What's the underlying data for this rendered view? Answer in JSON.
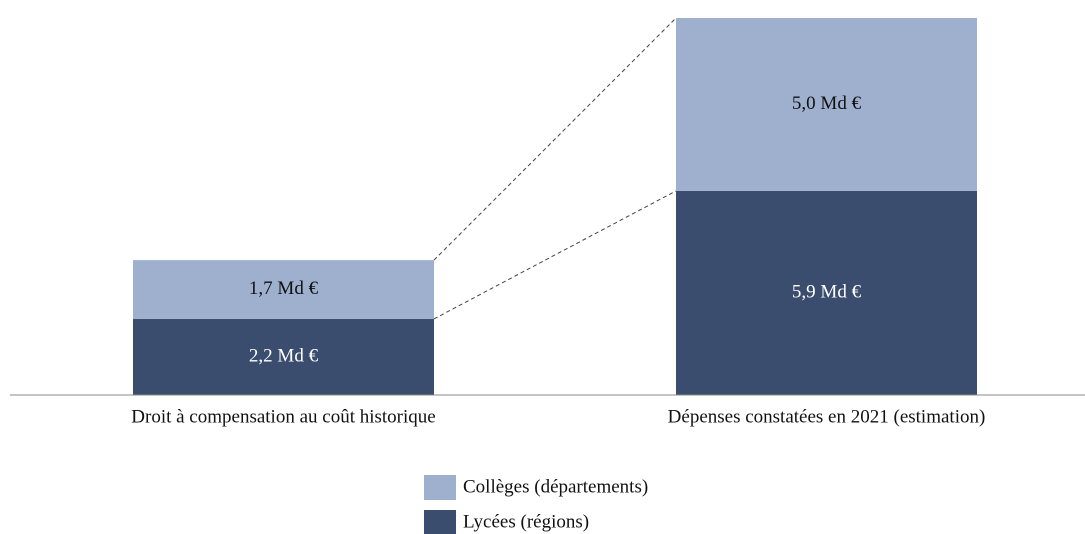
{
  "chart_data": {
    "type": "stacked_bar",
    "categories": [
      "Droit à compensation au coût historique",
      "Dépenses constatées en 2021 (estimation)"
    ],
    "series": [
      {
        "name": "Lycées (régions)",
        "color": "#3a4d6e",
        "values": [
          2.2,
          5.9
        ],
        "value_labels": [
          "2,2 Md €",
          "5,9 Md €"
        ]
      },
      {
        "name": "Collèges (départements)",
        "color": "#9eb0cd",
        "values": [
          1.7,
          5.0
        ],
        "value_labels": [
          "1,7 Md €",
          "5,0 Md €"
        ]
      }
    ],
    "legend": "bottom"
  }
}
